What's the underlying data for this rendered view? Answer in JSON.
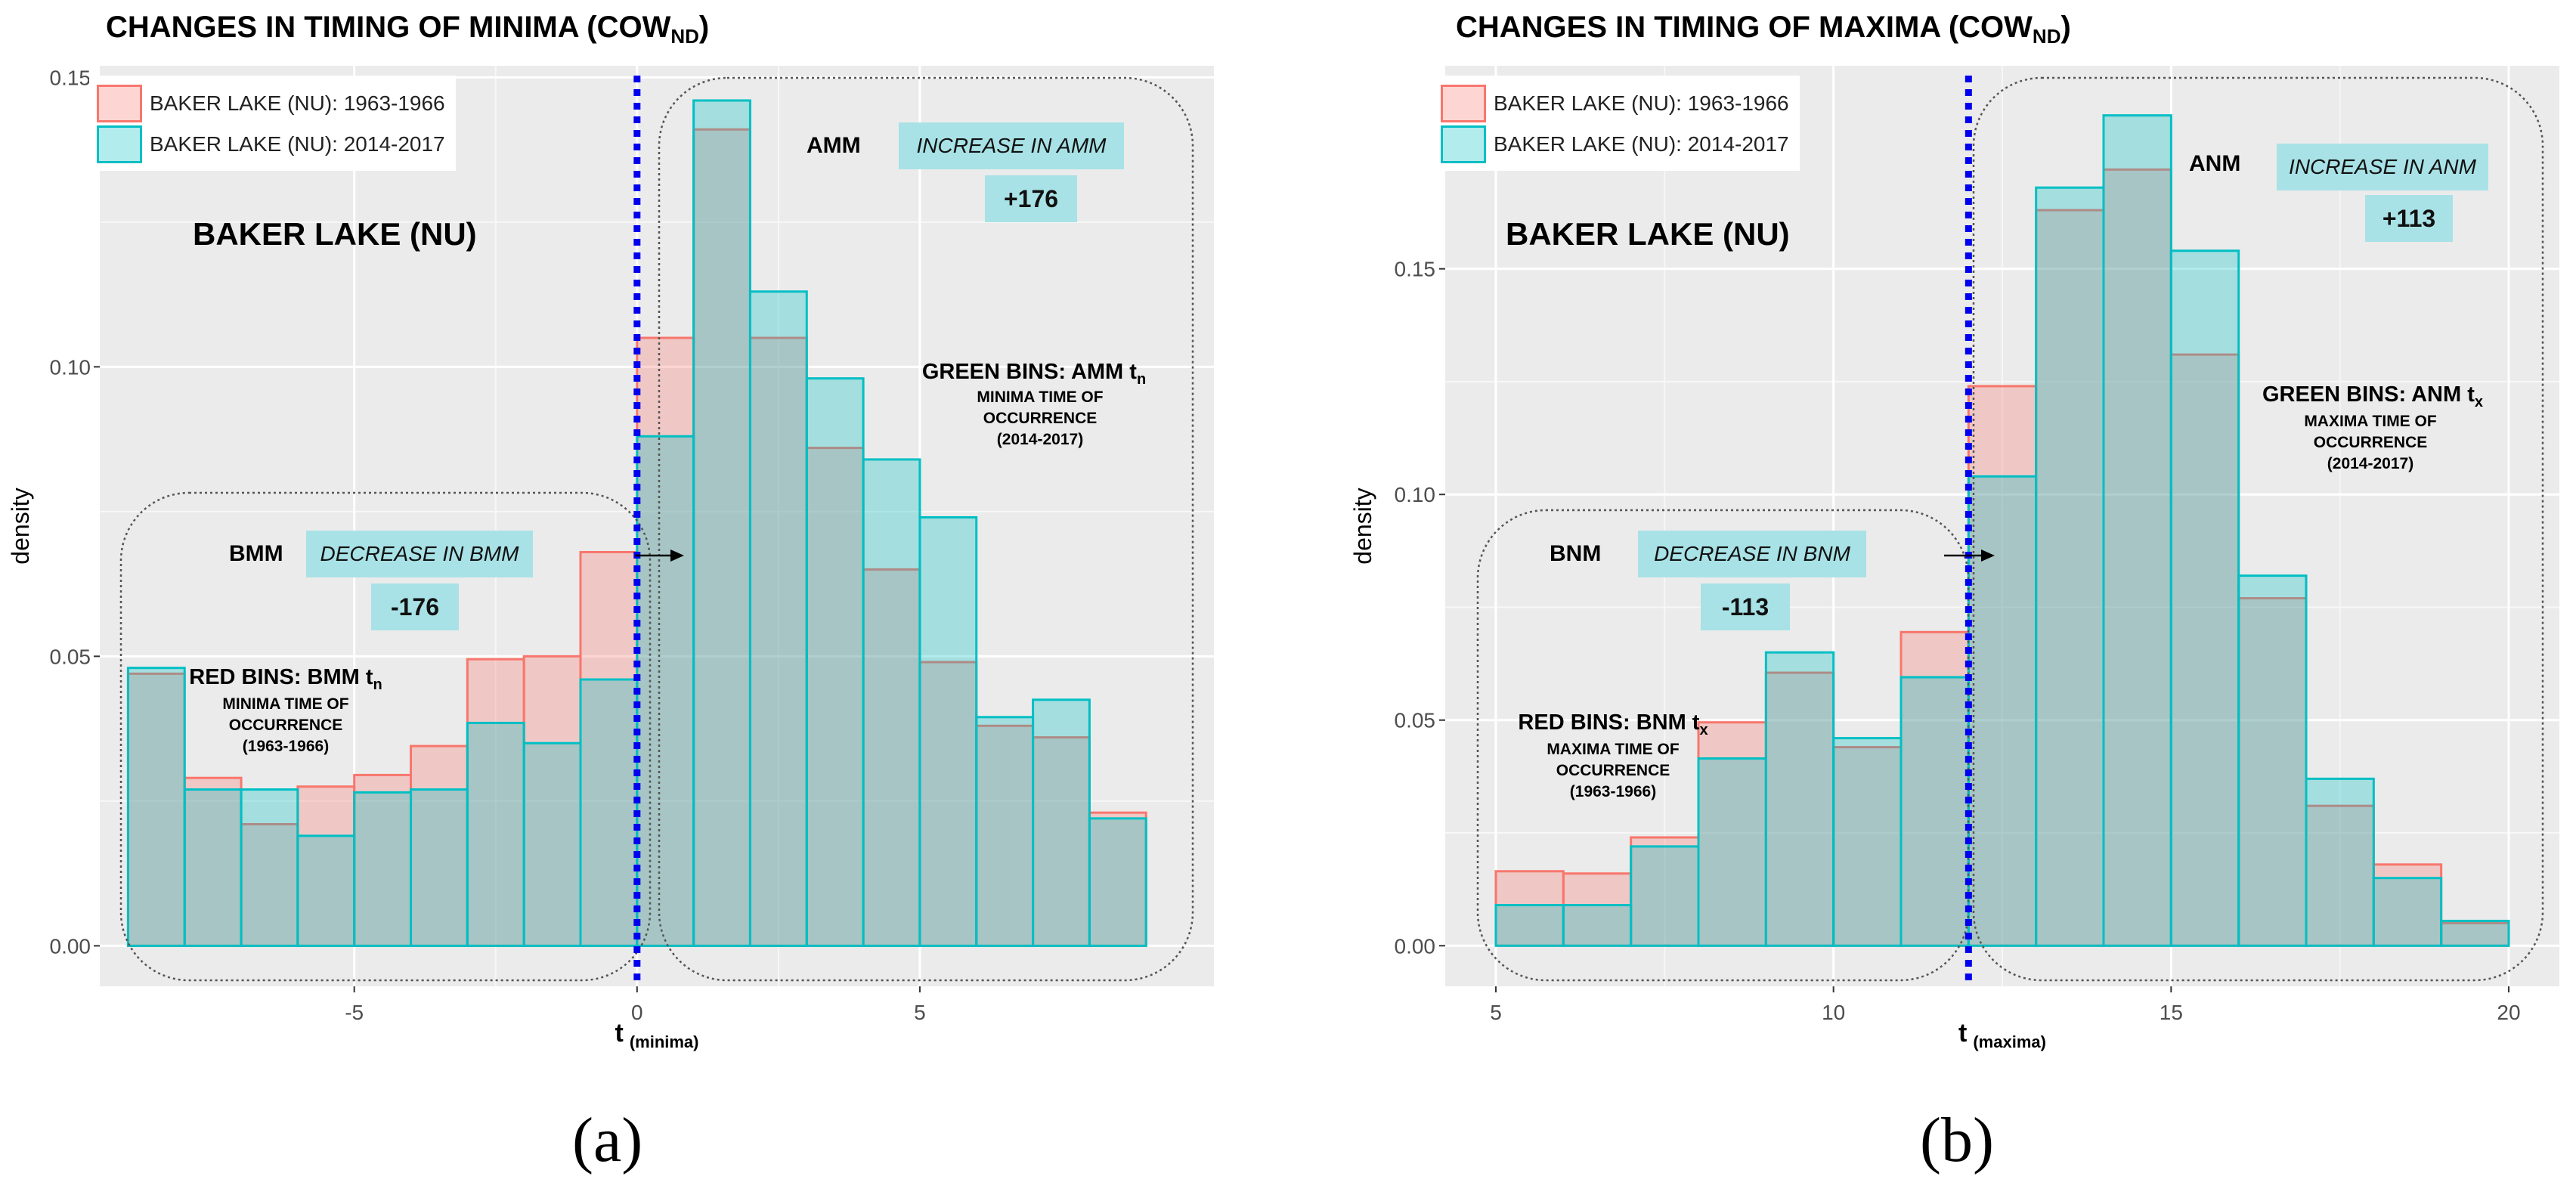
{
  "chart_data": [
    {
      "type": "histogram",
      "title": "CHANGES IN TIMING OF MINIMA (COW",
      "title_sub": "ND",
      "title_close": ")",
      "panel_label": "(a)",
      "xlabel": "t",
      "xlabel_sub": "(minima)",
      "ylabel": "density",
      "xlim": [
        -9.5,
        10.2
      ],
      "ylim": [
        -0.007,
        0.152
      ],
      "xticks": [
        -5,
        0,
        5
      ],
      "xtick_labels": [
        "-5",
        "0",
        "5"
      ],
      "yticks": [
        0,
        0.05,
        0.1,
        0.15
      ],
      "ytick_labels": [
        "0.00",
        "0.05",
        "0.10",
        "0.15"
      ],
      "bins_start": -9,
      "bin_width": 1,
      "series": [
        {
          "name": "BAKER LAKE (NU): 1963-1966",
          "color": "#f8766d",
          "values": [
            0.047,
            0.029,
            0.021,
            0.0275,
            0.0295,
            0.0345,
            0.0495,
            0.05,
            0.068,
            0.105,
            0.141,
            0.105,
            0.086,
            0.065,
            0.049,
            0.038,
            0.036,
            0.023
          ]
        },
        {
          "name": "BAKER LAKE (NU): 2014-2017",
          "color": "#00bfc4",
          "values": [
            0.048,
            0.027,
            0.027,
            0.019,
            0.0265,
            0.027,
            0.0385,
            0.035,
            0.046,
            0.088,
            0.146,
            0.113,
            0.098,
            0.084,
            0.074,
            0.0395,
            0.0425,
            0.022
          ]
        }
      ],
      "vline_x": 0,
      "station": "BAKER LAKE (NU)",
      "left_group": {
        "label": "BMM",
        "change": "DECREASE IN BMM",
        "value": "-176",
        "bins_head": "RED BINS: BMM t",
        "bins_head_sub": "n",
        "bins_line1": "MINIMA TIME OF",
        "bins_line2": "OCCURRENCE",
        "bins_line3": "(1963-1966)"
      },
      "right_group": {
        "label": "AMM",
        "change": "INCREASE IN AMM",
        "value": "+176",
        "bins_head": "GREEN BINS: AMM t",
        "bins_head_sub": "n",
        "bins_line1": "MINIMA TIME OF",
        "bins_line2": "OCCURRENCE",
        "bins_line3": "(2014-2017)"
      }
    },
    {
      "type": "histogram",
      "title": "CHANGES IN TIMING OF MAXIMA (COW",
      "title_sub": "ND",
      "title_close": ")",
      "panel_label": "(b)",
      "xlabel": "t",
      "xlabel_sub": "(maxima)",
      "ylabel": "density",
      "xlim": [
        4.25,
        20.75
      ],
      "ylim": [
        -0.009,
        0.195
      ],
      "xticks": [
        5,
        10,
        15,
        20
      ],
      "xtick_labels": [
        "5",
        "10",
        "15",
        "20"
      ],
      "yticks": [
        0,
        0.05,
        0.1,
        0.15
      ],
      "ytick_labels": [
        "0.00",
        "0.05",
        "0.10",
        "0.15"
      ],
      "bins_start": 5,
      "bin_width": 1,
      "series": [
        {
          "name": "BAKER LAKE (NU): 1963-1966",
          "color": "#f8766d",
          "values": [
            0.0165,
            0.016,
            0.024,
            0.0495,
            0.0605,
            0.044,
            0.0695,
            0.124,
            0.163,
            0.172,
            0.131,
            0.077,
            0.031,
            0.018,
            0.005
          ]
        },
        {
          "name": "BAKER LAKE (NU): 2014-2017",
          "color": "#00bfc4",
          "values": [
            0.009,
            0.009,
            0.022,
            0.0415,
            0.065,
            0.046,
            0.0595,
            0.104,
            0.168,
            0.184,
            0.154,
            0.082,
            0.037,
            0.015,
            0.0055
          ]
        }
      ],
      "vline_x": 12,
      "station": "BAKER LAKE (NU)",
      "left_group": {
        "label": "BNM",
        "change": "DECREASE IN BNM",
        "value": "-113",
        "bins_head": "RED BINS: BNM t",
        "bins_head_sub": "x",
        "bins_line1": "MAXIMA TIME OF",
        "bins_line2": "OCCURRENCE",
        "bins_line3": "(1963-1966)"
      },
      "right_group": {
        "label": "ANM",
        "change": "INCREASE IN ANM",
        "value": "+113",
        "bins_head": "GREEN BINS: ANM t",
        "bins_head_sub": "x",
        "bins_line1": "MAXIMA TIME OF",
        "bins_line2": "OCCURRENCE",
        "bins_line3": "(2014-2017)"
      }
    }
  ]
}
